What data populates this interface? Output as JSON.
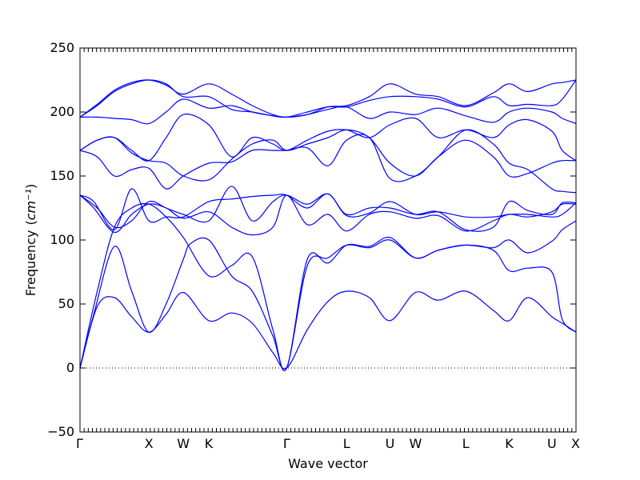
{
  "chart_data": {
    "type": "line",
    "xlabel": "Wave vector",
    "ylabel": "Frequency",
    "ylabel_unit": "cm⁻¹",
    "ylim": [
      -50,
      250
    ],
    "yticks": [
      -50,
      0,
      50,
      100,
      150,
      200,
      250
    ],
    "ytick_labels": [
      "−50",
      "0",
      "50",
      "100",
      "150",
      "200",
      "250"
    ],
    "xlim": [
      0,
      7.2
    ],
    "high_symmetry_points": [
      {
        "label": "Γ",
        "x": 0.0
      },
      {
        "label": "X",
        "x": 1.0
      },
      {
        "label": "W",
        "x": 1.5
      },
      {
        "label": "K",
        "x": 1.87
      },
      {
        "label": "Γ",
        "x": 3.0
      },
      {
        "label": "L",
        "x": 3.87
      },
      {
        "label": "U",
        "x": 4.5
      },
      {
        "label": "W",
        "x": 4.87
      },
      {
        "label": "L",
        "x": 5.6
      },
      {
        "label": "K",
        "x": 6.23
      },
      {
        "label": "U",
        "x": 6.85
      },
      {
        "label": "X",
        "x": 7.2
      }
    ],
    "line_color": "#0000ff",
    "zero_line": true,
    "grid": false,
    "series": [
      {
        "x": [
          0,
          0.25,
          0.5,
          0.75,
          1.0,
          1.25,
          1.5,
          1.87,
          2.2,
          2.5,
          2.8,
          3.0,
          3.3,
          3.6,
          3.87,
          4.2,
          4.5,
          4.87,
          5.2,
          5.6,
          6.0,
          6.23,
          6.5,
          6.85,
          7.0,
          7.2
        ],
        "values": [
          0,
          48,
          55,
          40,
          28,
          42,
          59,
          37,
          43,
          35,
          12,
          0,
          30,
          52,
          60,
          55,
          37,
          59,
          53,
          60,
          45,
          37,
          55,
          40,
          35,
          28
        ]
      },
      {
        "x": [
          0,
          0.2,
          0.5,
          0.75,
          1.0,
          1.25,
          1.5,
          1.6,
          1.87,
          2.2,
          2.5,
          2.8,
          3.0,
          3.3,
          3.6,
          3.87,
          4.2,
          4.5,
          4.87,
          5.2,
          5.6,
          6.0,
          6.23,
          6.5,
          6.85,
          7.0,
          7.2
        ],
        "values": [
          0,
          42,
          95,
          60,
          28,
          50,
          85,
          97,
          100,
          72,
          60,
          25,
          0,
          80,
          86,
          96,
          94,
          100,
          86,
          92,
          96,
          94,
          100,
          90,
          99,
          108,
          115
        ]
      },
      {
        "x": [
          0,
          0.25,
          0.5,
          0.75,
          1.0,
          1.25,
          1.5,
          1.87,
          2.2,
          2.5,
          2.8,
          3.0,
          3.3,
          3.6,
          3.87,
          4.2,
          4.5,
          4.87,
          5.2,
          5.6,
          6.0,
          6.23,
          6.5,
          6.85,
          7.0,
          7.2
        ],
        "values": [
          0,
          60,
          110,
          125,
          128,
          118,
          102,
          72,
          80,
          87,
          30,
          0,
          85,
          82,
          96,
          95,
          102,
          86,
          92,
          96,
          92,
          76,
          78,
          75,
          38,
          28
        ]
      },
      {
        "x": [
          0,
          0.2,
          0.5,
          0.75,
          1.0,
          1.25,
          1.5,
          1.87,
          2.2,
          2.5,
          2.8,
          3.0,
          3.3,
          3.6,
          3.87,
          4.2,
          4.5,
          4.87,
          5.2,
          5.6,
          6.0,
          6.23,
          6.5,
          6.85,
          7.0,
          7.2
        ],
        "values": [
          135,
          125,
          106,
          120,
          128,
          125,
          117,
          122,
          110,
          104,
          110,
          135,
          112,
          120,
          107,
          120,
          122,
          117,
          119,
          107,
          115,
          120,
          118,
          122,
          128,
          128
        ]
      },
      {
        "x": [
          0,
          0.2,
          0.5,
          0.75,
          1.0,
          1.25,
          1.5,
          1.87,
          2.2,
          2.5,
          2.8,
          3.0,
          3.3,
          3.6,
          3.87,
          4.2,
          4.5,
          4.87,
          5.2,
          5.6,
          6.0,
          6.23,
          6.5,
          6.85,
          7.0,
          7.2
        ],
        "values": [
          135,
          130,
          108,
          140,
          115,
          118,
          118,
          130,
          132,
          134,
          135,
          135,
          125,
          136,
          119,
          121,
          130,
          120,
          122,
          118,
          118,
          120,
          120,
          118,
          120,
          129
        ]
      },
      {
        "x": [
          0,
          0.25,
          0.5,
          0.75,
          1.0,
          1.25,
          1.5,
          1.87,
          2.2,
          2.5,
          2.8,
          3.0,
          3.3,
          3.6,
          3.87,
          4.2,
          4.5,
          4.87,
          5.2,
          5.6,
          6.0,
          6.23,
          6.5,
          6.85,
          7.0,
          7.2
        ],
        "values": [
          135,
          125,
          110,
          115,
          130,
          125,
          120,
          115,
          142,
          115,
          130,
          135,
          128,
          136,
          120,
          125,
          125,
          120,
          122,
          108,
          110,
          130,
          123,
          120,
          129,
          129
        ]
      },
      {
        "x": [
          0,
          0.25,
          0.5,
          0.75,
          1.0,
          1.25,
          1.5,
          1.87,
          2.2,
          2.5,
          2.8,
          3.0,
          3.3,
          3.6,
          3.87,
          4.2,
          4.5,
          4.87,
          5.2,
          5.6,
          6.0,
          6.23,
          6.5,
          6.85,
          7.0,
          7.2
        ],
        "values": [
          170,
          165,
          150,
          155,
          156,
          140,
          150,
          160,
          161,
          170,
          170,
          170,
          172,
          158,
          178,
          180,
          148,
          150,
          165,
          186,
          175,
          160,
          155,
          140,
          138,
          137
        ]
      },
      {
        "x": [
          0,
          0.25,
          0.5,
          0.75,
          1.0,
          1.25,
          1.5,
          1.87,
          2.2,
          2.5,
          2.8,
          3.0,
          3.3,
          3.6,
          3.87,
          4.2,
          4.5,
          4.87,
          5.2,
          5.6,
          6.0,
          6.23,
          6.5,
          6.85,
          7.0,
          7.2
        ],
        "values": [
          170,
          178,
          180,
          168,
          162,
          160,
          150,
          147,
          163,
          175,
          178,
          170,
          175,
          180,
          186,
          180,
          160,
          150,
          165,
          178,
          165,
          150,
          152,
          160,
          162,
          162
        ]
      },
      {
        "x": [
          0,
          0.25,
          0.5,
          0.75,
          1.0,
          1.25,
          1.5,
          1.87,
          2.2,
          2.5,
          2.8,
          3.0,
          3.3,
          3.6,
          3.87,
          4.2,
          4.5,
          4.87,
          5.2,
          5.6,
          6.0,
          6.23,
          6.5,
          6.85,
          7.0,
          7.2
        ],
        "values": [
          170,
          178,
          180,
          170,
          162,
          180,
          198,
          190,
          165,
          180,
          175,
          170,
          178,
          185,
          186,
          180,
          190,
          195,
          180,
          186,
          180,
          190,
          194,
          185,
          170,
          162
        ]
      },
      {
        "x": [
          0,
          0.25,
          0.5,
          0.75,
          1.0,
          1.25,
          1.5,
          1.87,
          2.2,
          2.5,
          2.8,
          3.0,
          3.3,
          3.6,
          3.87,
          4.2,
          4.5,
          4.87,
          5.2,
          5.6,
          6.0,
          6.23,
          6.5,
          6.85,
          7.0,
          7.2
        ],
        "values": [
          196,
          196,
          195,
          194,
          191,
          200,
          210,
          203,
          205,
          200,
          197,
          196,
          198,
          202,
          204,
          195,
          200,
          198,
          203,
          197,
          192,
          200,
          203,
          200,
          195,
          191
        ]
      },
      {
        "x": [
          0,
          0.25,
          0.5,
          0.75,
          1.0,
          1.25,
          1.5,
          1.87,
          2.2,
          2.5,
          2.8,
          3.0,
          3.3,
          3.6,
          3.87,
          4.2,
          4.5,
          4.87,
          5.2,
          5.6,
          6.0,
          6.23,
          6.5,
          6.85,
          7.0,
          7.2
        ],
        "values": [
          196,
          205,
          216,
          222,
          225,
          222,
          212,
          212,
          202,
          200,
          197,
          196,
          200,
          204,
          204,
          209,
          212,
          212,
          210,
          204,
          212,
          205,
          206,
          205,
          210,
          225
        ]
      },
      {
        "x": [
          0,
          0.25,
          0.5,
          0.75,
          1.0,
          1.25,
          1.5,
          1.87,
          2.2,
          2.5,
          2.8,
          3.0,
          3.3,
          3.6,
          3.87,
          4.2,
          4.5,
          4.87,
          5.2,
          5.6,
          6.0,
          6.23,
          6.5,
          6.85,
          7.0,
          7.2
        ],
        "values": [
          196,
          206,
          217,
          223,
          225,
          221,
          214,
          222,
          214,
          205,
          198,
          196,
          198,
          204,
          205,
          212,
          222,
          214,
          212,
          205,
          215,
          222,
          216,
          222,
          223,
          225
        ]
      }
    ]
  }
}
